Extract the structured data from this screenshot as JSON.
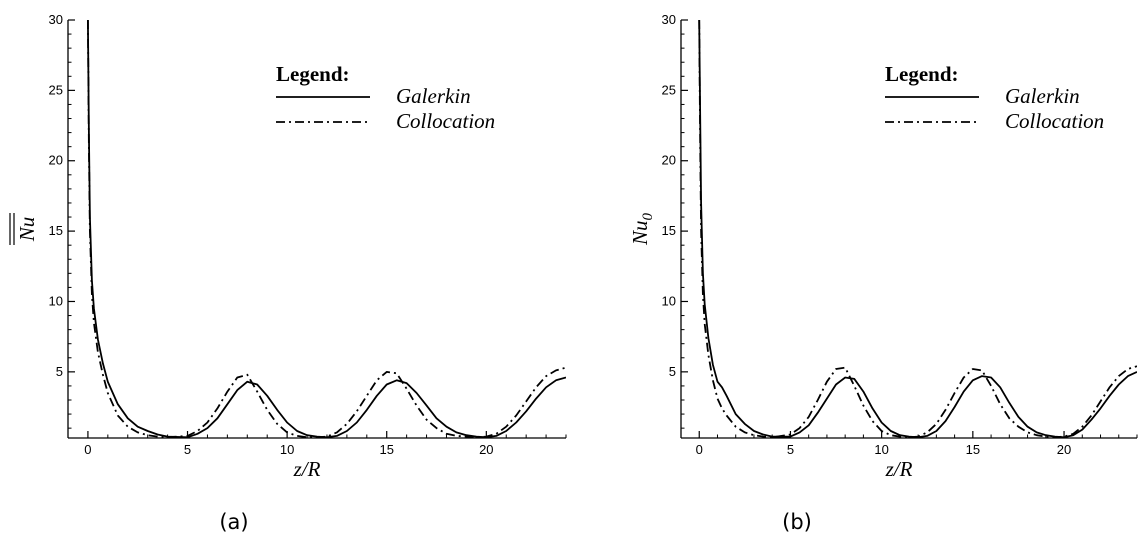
{
  "figure": {
    "panels": [
      {
        "caption": "(a)",
        "ylabel_text": "Nu",
        "ylabel_overline": true,
        "ylabel_subscript": "",
        "xlabel": "z/R",
        "legend": {
          "title": "Legend:",
          "entries": [
            {
              "label": "Galerkin",
              "style": "solid"
            },
            {
              "label": "Collocation",
              "style": "dash-dot"
            }
          ]
        }
      },
      {
        "caption": "(b)",
        "ylabel_text": "Nu",
        "ylabel_overline": false,
        "ylabel_subscript": "0",
        "xlabel": "z/R",
        "legend": {
          "title": "Legend:",
          "entries": [
            {
              "label": "Galerkin",
              "style": "solid"
            },
            {
              "label": "Collocation",
              "style": "dash-dot"
            }
          ]
        }
      }
    ]
  },
  "chart_data": [
    {
      "type": "line",
      "title": "",
      "xlabel": "z/R",
      "ylabel": "Nu (overlined)",
      "xlim": [
        -1,
        24
      ],
      "ylim": [
        0.3,
        30
      ],
      "xticks": [
        0,
        5,
        10,
        15,
        20
      ],
      "yticks": [
        5,
        10,
        15,
        20,
        25,
        30
      ],
      "grid": false,
      "legend_position": "top-right",
      "series": [
        {
          "name": "Galerkin",
          "style": "solid",
          "x": [
            0,
            0.05,
            0.1,
            0.2,
            0.3,
            0.5,
            0.75,
            1.0,
            1.5,
            2.0,
            2.5,
            3.0,
            3.5,
            4.0,
            5.0,
            5.5,
            6.0,
            6.5,
            7.0,
            7.5,
            8.0,
            8.5,
            9.0,
            9.5,
            10.0,
            10.5,
            11.0,
            11.5,
            12.0,
            12.5,
            13.0,
            13.5,
            14.0,
            14.5,
            15.0,
            15.5,
            16.0,
            16.5,
            17.0,
            17.5,
            18.0,
            18.5,
            19.0,
            19.5,
            20.0,
            20.5,
            21.0,
            21.5,
            22.0,
            22.5,
            23.0,
            23.5,
            24.0
          ],
          "y": [
            30,
            22,
            16,
            11.5,
            9.5,
            7.3,
            5.6,
            4.3,
            2.7,
            1.7,
            1.1,
            0.8,
            0.55,
            0.4,
            0.35,
            0.6,
            1.0,
            1.7,
            2.7,
            3.7,
            4.3,
            4.1,
            3.3,
            2.3,
            1.4,
            0.8,
            0.5,
            0.4,
            0.35,
            0.45,
            0.8,
            1.4,
            2.3,
            3.3,
            4.1,
            4.4,
            4.2,
            3.5,
            2.6,
            1.7,
            1.1,
            0.7,
            0.5,
            0.4,
            0.35,
            0.45,
            0.8,
            1.4,
            2.2,
            3.1,
            3.9,
            4.4,
            4.6
          ]
        },
        {
          "name": "Collocation",
          "style": "dash-dot",
          "x": [
            0,
            0.05,
            0.1,
            0.2,
            0.3,
            0.5,
            0.75,
            1.0,
            1.5,
            2.0,
            2.5,
            3.0,
            3.5,
            4.0,
            5.0,
            5.5,
            6.0,
            6.5,
            7.0,
            7.5,
            8.0,
            8.5,
            9.0,
            9.5,
            10.0,
            10.5,
            11.0,
            11.5,
            12.0,
            12.5,
            13.0,
            13.5,
            14.0,
            14.5,
            15.0,
            15.5,
            16.0,
            16.5,
            17.0,
            17.5,
            18.0,
            18.5,
            19.0,
            19.5,
            20.0,
            20.5,
            21.0,
            21.5,
            22.0,
            22.5,
            23.0,
            23.5,
            24.0
          ],
          "y": [
            30,
            21,
            15,
            10.5,
            8.5,
            6.4,
            4.8,
            3.5,
            1.9,
            1.1,
            0.7,
            0.5,
            0.4,
            0.35,
            0.45,
            0.8,
            1.4,
            2.4,
            3.6,
            4.6,
            4.8,
            3.6,
            2.3,
            1.3,
            0.7,
            0.45,
            0.35,
            0.35,
            0.4,
            0.7,
            1.3,
            2.2,
            3.3,
            4.4,
            5.0,
            4.9,
            3.8,
            2.6,
            1.6,
            1.0,
            0.6,
            0.45,
            0.4,
            0.35,
            0.4,
            0.6,
            1.1,
            1.9,
            2.9,
            3.9,
            4.7,
            5.1,
            5.3
          ]
        }
      ]
    },
    {
      "type": "line",
      "title": "",
      "xlabel": "z/R",
      "ylabel": "Nu0",
      "xlim": [
        -1,
        24
      ],
      "ylim": [
        0.3,
        30
      ],
      "xticks": [
        0,
        5,
        10,
        15,
        20
      ],
      "yticks": [
        5,
        10,
        15,
        20,
        25,
        30
      ],
      "grid": false,
      "legend_position": "top-right",
      "series": [
        {
          "name": "Galerkin",
          "style": "solid",
          "x": [
            0,
            0.05,
            0.1,
            0.2,
            0.3,
            0.5,
            0.75,
            1.0,
            1.25,
            1.5,
            2.0,
            2.5,
            3.0,
            3.5,
            4.0,
            5.0,
            5.5,
            6.0,
            6.5,
            7.0,
            7.5,
            8.0,
            8.5,
            9.0,
            9.5,
            10.0,
            10.5,
            11.0,
            11.5,
            12.0,
            12.5,
            13.0,
            13.5,
            14.0,
            14.5,
            15.0,
            15.5,
            16.0,
            16.5,
            17.0,
            17.5,
            18.0,
            18.5,
            19.0,
            19.5,
            20.0,
            20.5,
            21.0,
            21.5,
            22.0,
            22.5,
            23.0,
            23.5,
            24.0
          ],
          "y": [
            30,
            23,
            17,
            12,
            9.8,
            7.4,
            5.5,
            4.3,
            3.9,
            3.3,
            2.0,
            1.3,
            0.8,
            0.55,
            0.4,
            0.4,
            0.7,
            1.2,
            2.1,
            3.1,
            4.1,
            4.6,
            4.5,
            3.6,
            2.4,
            1.4,
            0.8,
            0.5,
            0.4,
            0.35,
            0.45,
            0.8,
            1.5,
            2.5,
            3.6,
            4.4,
            4.7,
            4.6,
            3.9,
            2.8,
            1.8,
            1.1,
            0.7,
            0.5,
            0.4,
            0.35,
            0.5,
            0.9,
            1.6,
            2.4,
            3.3,
            4.1,
            4.7,
            5.0
          ]
        },
        {
          "name": "Collocation",
          "style": "dash-dot",
          "x": [
            0,
            0.05,
            0.1,
            0.2,
            0.3,
            0.5,
            0.75,
            1.0,
            1.25,
            1.5,
            2.0,
            2.5,
            3.0,
            3.5,
            4.0,
            5.0,
            5.5,
            6.0,
            6.5,
            7.0,
            7.5,
            8.0,
            8.5,
            9.0,
            9.5,
            10.0,
            10.5,
            11.0,
            11.5,
            12.0,
            12.5,
            13.0,
            13.5,
            14.0,
            14.5,
            15.0,
            15.5,
            16.0,
            16.5,
            17.0,
            17.5,
            18.0,
            18.5,
            19.0,
            19.5,
            20.0,
            20.5,
            21.0,
            21.5,
            22.0,
            22.5,
            23.0,
            23.5,
            24.0
          ],
          "y": [
            30,
            21,
            15,
            10.5,
            8.4,
            6.2,
            4.4,
            3.1,
            2.4,
            1.9,
            1.1,
            0.7,
            0.5,
            0.4,
            0.35,
            0.55,
            1.0,
            1.8,
            3.0,
            4.3,
            5.2,
            5.3,
            4.0,
            2.6,
            1.5,
            0.8,
            0.5,
            0.4,
            0.35,
            0.4,
            0.7,
            1.3,
            2.3,
            3.5,
            4.6,
            5.2,
            5.1,
            4.0,
            2.7,
            1.7,
            1.1,
            0.7,
            0.5,
            0.4,
            0.35,
            0.4,
            0.6,
            1.1,
            1.9,
            2.9,
            3.9,
            4.7,
            5.2,
            5.4
          ]
        }
      ]
    }
  ]
}
